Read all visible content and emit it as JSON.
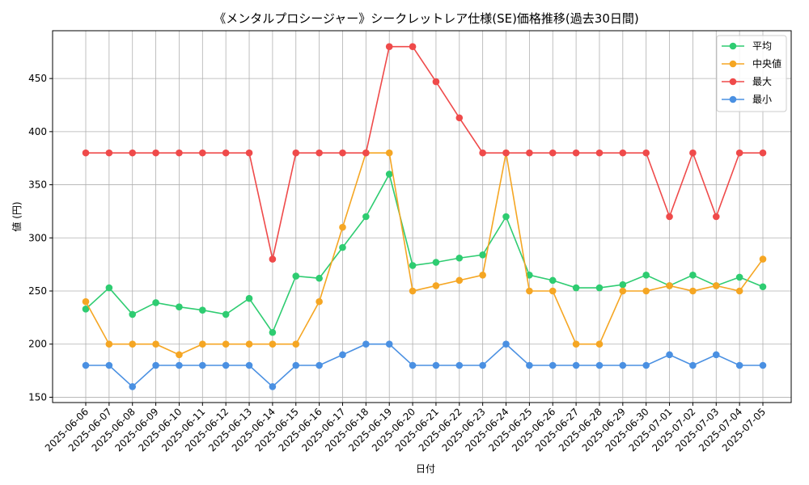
{
  "chart_data": {
    "type": "line",
    "title": "《メンタルプロシージャー》シークレットレア仕様(SE)価格推移(過去30日間)",
    "xlabel": "日付",
    "ylabel": "値 (円)",
    "ylim": [
      145,
      495
    ],
    "yticks": [
      150,
      200,
      250,
      300,
      350,
      400,
      450
    ],
    "grid": true,
    "legend_position": "top-right",
    "categories": [
      "2025-06-06",
      "2025-06-07",
      "2025-06-08",
      "2025-06-09",
      "2025-06-10",
      "2025-06-11",
      "2025-06-12",
      "2025-06-13",
      "2025-06-14",
      "2025-06-15",
      "2025-06-16",
      "2025-06-17",
      "2025-06-18",
      "2025-06-19",
      "2025-06-20",
      "2025-06-21",
      "2025-06-22",
      "2025-06-23",
      "2025-06-24",
      "2025-06-25",
      "2025-06-26",
      "2025-06-27",
      "2025-06-28",
      "2025-06-29",
      "2025-06-30",
      "2025-07-01",
      "2025-07-02",
      "2025-07-03",
      "2025-07-04",
      "2025-07-05"
    ],
    "series": [
      {
        "name": "平均",
        "color": "#2ecc71",
        "values": [
          233,
          253,
          228,
          239,
          235,
          232,
          228,
          243,
          211,
          264,
          262,
          291,
          320,
          360,
          274,
          277,
          281,
          284,
          320,
          265,
          260,
          253,
          253,
          256,
          265,
          255,
          265,
          255,
          263,
          254
        ]
      },
      {
        "name": "中央値",
        "color": "#f5a623",
        "values": [
          240,
          200,
          200,
          200,
          190,
          200,
          200,
          200,
          200,
          200,
          240,
          310,
          380,
          380,
          250,
          255,
          260,
          265,
          380,
          250,
          250,
          200,
          200,
          250,
          250,
          255,
          250,
          255,
          250,
          280
        ]
      },
      {
        "name": "最大",
        "color": "#ef4a4a",
        "values": [
          380,
          380,
          380,
          380,
          380,
          380,
          380,
          380,
          280,
          380,
          380,
          380,
          380,
          480,
          480,
          447,
          413,
          380,
          380,
          380,
          380,
          380,
          380,
          380,
          380,
          320,
          380,
          320,
          380,
          380
        ]
      },
      {
        "name": "最小",
        "color": "#4a90e2",
        "values": [
          180,
          180,
          160,
          180,
          180,
          180,
          180,
          180,
          160,
          180,
          180,
          190,
          200,
          200,
          180,
          180,
          180,
          180,
          200,
          180,
          180,
          180,
          180,
          180,
          180,
          190,
          180,
          190,
          180,
          180
        ]
      }
    ]
  }
}
